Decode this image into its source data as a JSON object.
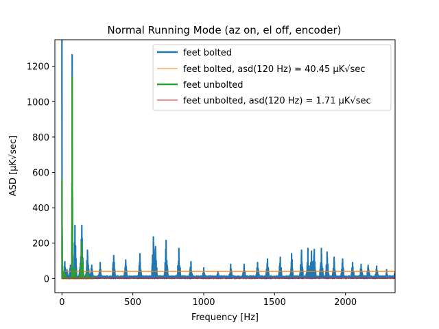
{
  "chart_data": {
    "type": "line",
    "title": "Normal Running Mode (az on, el off, encoder)",
    "xlabel": "Frequency [Hz]",
    "ylabel": "ASD [μK√sec]",
    "xlim": [
      -50,
      2350
    ],
    "ylim": [
      -80,
      1350
    ],
    "xticks": [
      0,
      500,
      1000,
      1500,
      2000
    ],
    "yticks": [
      0,
      200,
      400,
      600,
      800,
      1000,
      1200
    ],
    "grid": false,
    "legend_position": "top-right",
    "series": [
      {
        "name": "feet bolted",
        "color": "#1f77b4",
        "style": "spectrum",
        "baseline": 15,
        "peaks": [
          {
            "x": 0,
            "y": 1350
          },
          {
            "x": 20,
            "y": 95
          },
          {
            "x": 35,
            "y": 50
          },
          {
            "x": 60,
            "y": 75
          },
          {
            "x": 72,
            "y": 1265
          },
          {
            "x": 92,
            "y": 300
          },
          {
            "x": 130,
            "y": 85
          },
          {
            "x": 140,
            "y": 300
          },
          {
            "x": 180,
            "y": 160
          },
          {
            "x": 210,
            "y": 75
          },
          {
            "x": 270,
            "y": 90
          },
          {
            "x": 365,
            "y": 130
          },
          {
            "x": 450,
            "y": 105
          },
          {
            "x": 550,
            "y": 140
          },
          {
            "x": 645,
            "y": 235
          },
          {
            "x": 660,
            "y": 180
          },
          {
            "x": 735,
            "y": 215
          },
          {
            "x": 825,
            "y": 170
          },
          {
            "x": 910,
            "y": 95
          },
          {
            "x": 1000,
            "y": 60
          },
          {
            "x": 1100,
            "y": 40
          },
          {
            "x": 1190,
            "y": 80
          },
          {
            "x": 1285,
            "y": 80
          },
          {
            "x": 1380,
            "y": 90
          },
          {
            "x": 1450,
            "y": 110
          },
          {
            "x": 1540,
            "y": 120
          },
          {
            "x": 1620,
            "y": 140
          },
          {
            "x": 1690,
            "y": 160
          },
          {
            "x": 1735,
            "y": 170
          },
          {
            "x": 1760,
            "y": 155
          },
          {
            "x": 1780,
            "y": 165
          },
          {
            "x": 1830,
            "y": 170
          },
          {
            "x": 1870,
            "y": 150
          },
          {
            "x": 1920,
            "y": 120
          },
          {
            "x": 1980,
            "y": 110
          },
          {
            "x": 2050,
            "y": 90
          },
          {
            "x": 2110,
            "y": 80
          },
          {
            "x": 2160,
            "y": 75
          },
          {
            "x": 2220,
            "y": 70
          },
          {
            "x": 2290,
            "y": 50
          },
          {
            "x": 2350,
            "y": 40
          }
        ]
      },
      {
        "name": "feet bolted, asd(120 Hz) = 40.45 μK√sec",
        "color": "#ff7f0e",
        "style": "hline",
        "y": 40.45
      },
      {
        "name": "feet unbolted",
        "color": "#2ca02c",
        "style": "spectrum",
        "baseline": 3,
        "peaks": [
          {
            "x": 0,
            "y": 565
          },
          {
            "x": 15,
            "y": 40
          },
          {
            "x": 72,
            "y": 1140
          },
          {
            "x": 90,
            "y": 60
          },
          {
            "x": 140,
            "y": 205
          },
          {
            "x": 180,
            "y": 30
          },
          {
            "x": 220,
            "y": 15
          }
        ]
      },
      {
        "name": "feet unbolted, asd(120 Hz) = 1.71 μK√sec",
        "color": "#d62728",
        "style": "hline",
        "y": 1.71
      }
    ]
  }
}
